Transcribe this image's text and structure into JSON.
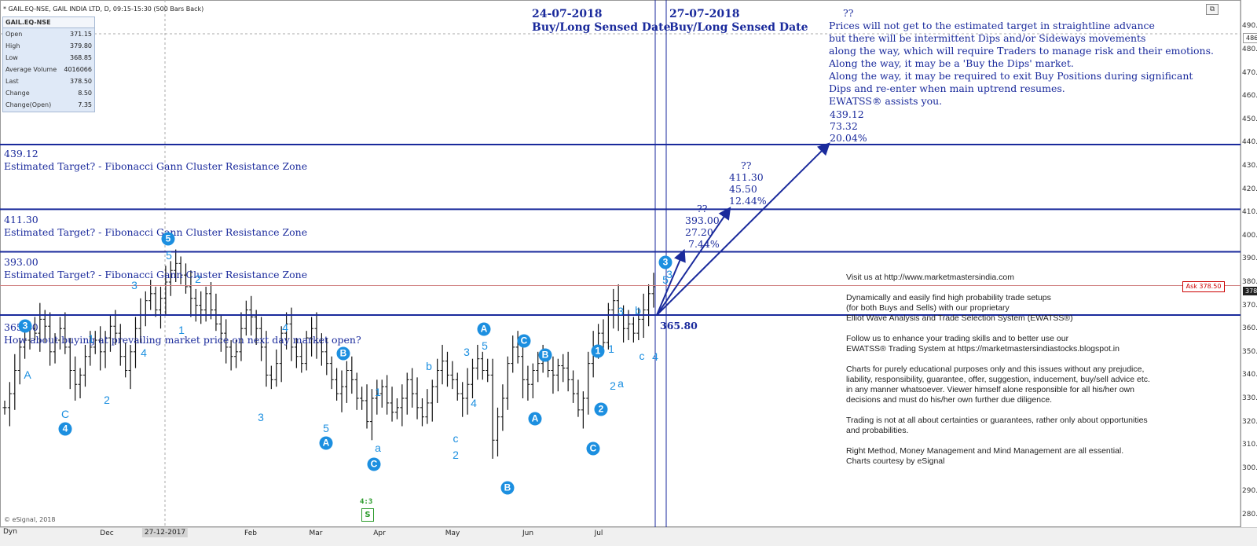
{
  "header": {
    "title": "* GAIL.EQ-NSE, GAIL INDIA LTD, D, 09:15-15:30 (500 Bars Back)"
  },
  "info_box": {
    "title": "GAIL.EQ-NSE",
    "rows": [
      {
        "label": "Open",
        "value": "371.15"
      },
      {
        "label": "High",
        "value": "379.80"
      },
      {
        "label": "Low",
        "value": "368.85"
      },
      {
        "label": "Average Volume",
        "value": "4016066"
      },
      {
        "label": "Last",
        "value": "378.50"
      },
      {
        "label": "Change",
        "value": "8.50"
      },
      {
        "label": "Change(Open)",
        "value": "7.35"
      }
    ]
  },
  "dates": {
    "d1": "24-07-2018",
    "d1_sub": "Buy/Long Sensed Date",
    "d2": "27-07-2018",
    "d2_sub": "Buy/Long Sensed Date"
  },
  "note": {
    "q": "??",
    "lines": [
      "Prices will not get to the estimated target in straightline advance",
      "but there will be intermittent Dips and/or Sideways movements",
      "along the way, which will require Traders to manage risk and their emotions.",
      "Along the way, it may be a 'Buy the Dips' market.",
      "Along the way, it may be required to exit Buy Positions during significant",
      "Dips and re-enter when main uptrend resumes.",
      "EWATSS® assists you."
    ]
  },
  "zones": [
    {
      "price": "439.12",
      "label": "Estimated Target? - Fibonacci Gann Cluster Resistance Zone"
    },
    {
      "price": "411.30",
      "label": "Estimated Target? - Fibonacci Gann Cluster Resistance Zone"
    },
    {
      "price": "393.00",
      "label": "Estimated Target? - Fibonacci Gann Cluster Resistance Zone"
    }
  ],
  "low_zone": {
    "price": "365.80",
    "label": "How about buying at prevailing market price on next day market open?"
  },
  "targets": [
    {
      "q": "??",
      "l1": "393.00",
      "l2": "27.20",
      "l3": "7.44%"
    },
    {
      "q": "??",
      "l1": "411.30",
      "l2": "45.50",
      "l3": "12.44%"
    },
    {
      "q": "",
      "l1": "439.12",
      "l2": "73.32",
      "l3": "20.04%"
    }
  ],
  "right_info": [
    "Visit us at http://www.marketmastersindia.com",
    "",
    "Dynamically and easily find high probability trade setups",
    "(for both Buys and Sells) with our proprietary",
    "Elliot Wave Analysis and Trade Selection System (EWATSS®)",
    "",
    "Follow us to enhance your trading skills and to better use our",
    "EWATSS® Trading System at https://marketmastersindiastocks.blogspot.in",
    "",
    "Charts for purely educational purposes only and this issues without any prejudice,",
    "liability, responsibility, guarantee, offer, suggestion, inducement, buy/sell advice etc.",
    "in any manner whatsoever. Viewer himself alone responsible for all his/her own",
    "decisions and must do his/her own further due diligence.",
    "",
    "Trading is not at all about certainties or guarantees, rather only about opportunities",
    "and probabilities.",
    "",
    "Right Method, Money Management and Mind Management are all essential.",
    "Charts courtesy by eSignal"
  ],
  "copyright": "© eSignal, 2018",
  "bottom": {
    "dyn": "Dyn",
    "months": [
      "Dec",
      "27-12-2017",
      "Feb",
      "Mar",
      "Apr",
      "May",
      "Jun",
      "Jul"
    ]
  },
  "price_axis": {
    "ticks": [
      "490.00",
      "480.00",
      "470.00",
      "460.00",
      "450.00",
      "440.00",
      "430.00",
      "420.00",
      "410.00",
      "400.00",
      "390.00",
      "380.00",
      "370.00",
      "360.00",
      "350.00",
      "340.00",
      "330.00",
      "320.00",
      "310.00",
      "300.00",
      "290.00",
      "280.00"
    ],
    "top_price": "486.77",
    "ask": "Ask 378.50",
    "last": "378.50",
    "val_3658": "365.80"
  },
  "ratio": "4:3",
  "s_box": "S",
  "colors": {
    "line": "#1a2a9c",
    "wave": "#1c8fe0",
    "ask": "#cc0000"
  },
  "chart_data": {
    "type": "candlestick",
    "title": "GAIL.EQ-NSE, GAIL INDIA LTD, D",
    "ylim": [
      280,
      495
    ],
    "closes": [
      326,
      332,
      342,
      352,
      355,
      360,
      358,
      364,
      361,
      350,
      355,
      360,
      352,
      342,
      336,
      340,
      348,
      352,
      355,
      350,
      356,
      361,
      358,
      348,
      342,
      350,
      360,
      366,
      372,
      375,
      368,
      373,
      380,
      385,
      388,
      383,
      378,
      373,
      370,
      368,
      375,
      368,
      362,
      358,
      352,
      348,
      350,
      360,
      368,
      365,
      360,
      352,
      340,
      338,
      345,
      358,
      362,
      352,
      348,
      345,
      356,
      360,
      354,
      350,
      345,
      338,
      332,
      335,
      342,
      338,
      330,
      329,
      320,
      330,
      332,
      335,
      328,
      324,
      326,
      330,
      338,
      332,
      326,
      322,
      328,
      335,
      342,
      346,
      340,
      338,
      332,
      330,
      336,
      343,
      347,
      342,
      340,
      312,
      322,
      330,
      345,
      352,
      348,
      338,
      336,
      342,
      345,
      346,
      342,
      340,
      344,
      343,
      338,
      332,
      325,
      330,
      345,
      352,
      358,
      354,
      368,
      372,
      366,
      360,
      362,
      358,
      364,
      368,
      375,
      378
    ]
  }
}
